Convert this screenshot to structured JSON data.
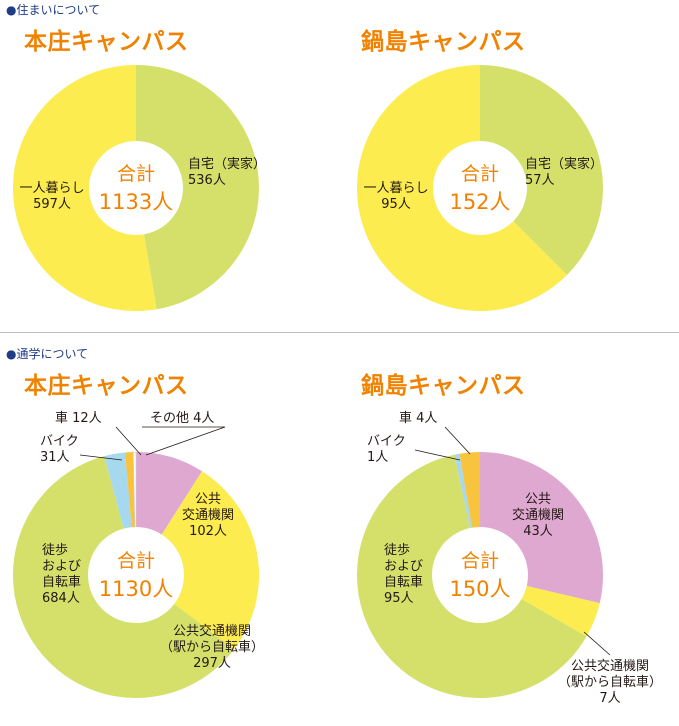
{
  "sections": [
    {
      "label": "住まいについて"
    },
    {
      "label": "通学について"
    }
  ],
  "colors": {
    "green": "#d4e06a",
    "yellow": "#fcec4f",
    "pink": "#dfa8d0",
    "light_blue": "#a6d9ee",
    "orange": "#f9c43d",
    "title": "#f08200",
    "section": "#1f3c88"
  },
  "chart_data": [
    {
      "type": "pie",
      "title": "本庄キャンパス",
      "center_label": "合計",
      "total_text": "1133人",
      "slices": [
        {
          "name": "自宅（実家）",
          "value": 536,
          "label_lines": [
            "自宅（実家）",
            "536人"
          ],
          "color": "#d4e06a"
        },
        {
          "name": "一人暮らし",
          "value": 597,
          "label_lines": [
            "一人暮らし",
            "597人"
          ],
          "color": "#fcec4f"
        }
      ]
    },
    {
      "type": "pie",
      "title": "鍋島キャンパス",
      "center_label": "合計",
      "total_text": "152人",
      "slices": [
        {
          "name": "自宅（実家）",
          "value": 57,
          "label_lines": [
            "自宅（実家）",
            "57人"
          ],
          "color": "#d4e06a"
        },
        {
          "name": "一人暮らし",
          "value": 95,
          "label_lines": [
            "一人暮らし",
            "95人"
          ],
          "color": "#fcec4f"
        }
      ]
    },
    {
      "type": "pie",
      "title": "本庄キャンパス",
      "center_label": "合計",
      "total_text": "1130人",
      "slices": [
        {
          "name": "公共交通機関",
          "value": 102,
          "label_lines": [
            "公共",
            "交通機関",
            "102人"
          ],
          "color": "#dfa8d0"
        },
        {
          "name": "公共交通機関（駅から自転車）",
          "value": 297,
          "label_lines": [
            "公共交通機関",
            "（駅から自転車）",
            "297人"
          ],
          "color": "#fcec4f"
        },
        {
          "name": "徒歩および自転車",
          "value": 684,
          "label_lines": [
            "徒歩",
            "および",
            "自転車",
            "684人"
          ],
          "color": "#d4e06a"
        },
        {
          "name": "バイク",
          "value": 31,
          "label_lines": [
            "バイク",
            "31人"
          ],
          "color": "#a6d9ee"
        },
        {
          "name": "車",
          "value": 12,
          "label_lines": [
            "車 12人"
          ],
          "color": "#f9c43d"
        },
        {
          "name": "その他",
          "value": 4,
          "label_lines": [
            "その他 4人"
          ],
          "color": "#ffffff"
        }
      ]
    },
    {
      "type": "pie",
      "title": "鍋島キャンパス",
      "center_label": "合計",
      "total_text": "150人",
      "slices": [
        {
          "name": "公共交通機関",
          "value": 43,
          "label_lines": [
            "公共",
            "交通機関",
            "43人"
          ],
          "color": "#dfa8d0"
        },
        {
          "name": "公共交通機関（駅から自転車）",
          "value": 7,
          "label_lines": [
            "公共交通機関",
            "（駅から自転車）",
            "7人"
          ],
          "color": "#fcec4f"
        },
        {
          "name": "徒歩および自転車",
          "value": 95,
          "label_lines": [
            "徒歩",
            "および",
            "自転車",
            "95人"
          ],
          "color": "#d4e06a"
        },
        {
          "name": "バイク",
          "value": 1,
          "label_lines": [
            "バイク",
            "1人"
          ],
          "color": "#a6d9ee"
        },
        {
          "name": "車",
          "value": 4,
          "label_lines": [
            "車 4人"
          ],
          "color": "#f9c43d"
        }
      ]
    }
  ]
}
